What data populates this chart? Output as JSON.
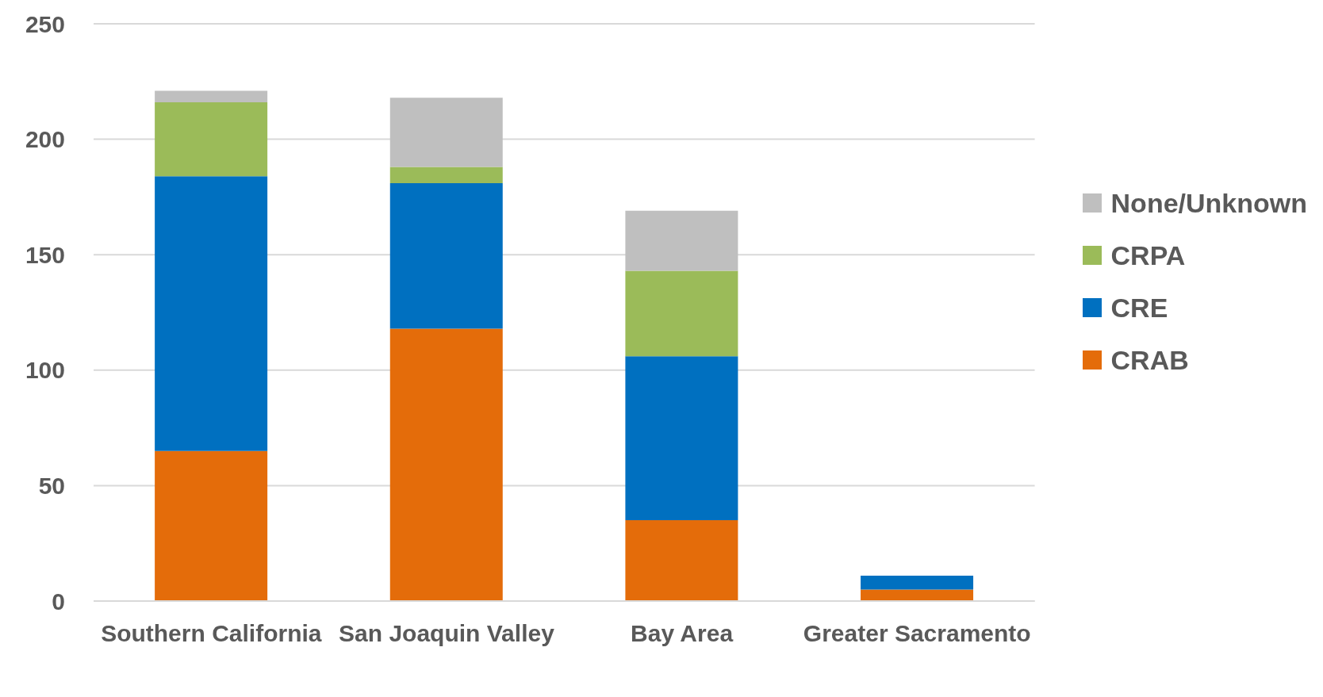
{
  "chart_data": {
    "type": "bar",
    "stacked": true,
    "categories": [
      "Southern California",
      "San Joaquin Valley",
      "Bay Area",
      "Greater Sacramento"
    ],
    "series": [
      {
        "name": "CRAB",
        "color": "#e46c0a",
        "values": [
          65,
          118,
          35,
          5
        ]
      },
      {
        "name": "CRE",
        "color": "#0070c0",
        "values": [
          119,
          63,
          71,
          6
        ]
      },
      {
        "name": "CRPA",
        "color": "#9bbb59",
        "values": [
          32,
          7,
          37,
          0
        ]
      },
      {
        "name": "None/Unknown",
        "color": "#bfbfbf",
        "values": [
          5,
          30,
          26,
          0
        ]
      }
    ],
    "ylim": [
      0,
      250
    ],
    "yticks": [
      0,
      50,
      100,
      150,
      200,
      250
    ],
    "grid": "y",
    "legend": "right"
  }
}
